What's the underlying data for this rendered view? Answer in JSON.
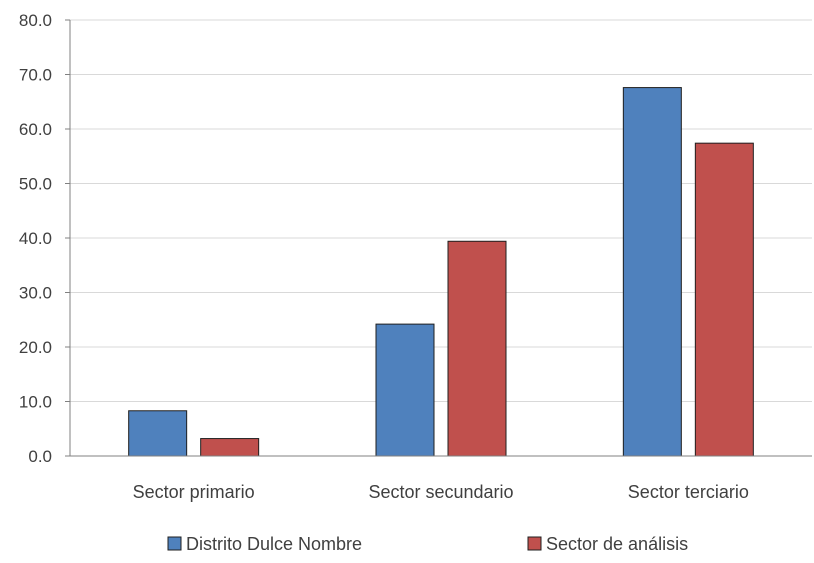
{
  "chart_data": {
    "type": "bar",
    "categories": [
      "Sector primario",
      "Sector secundario",
      "Sector terciario"
    ],
    "series": [
      {
        "name": "Distrito Dulce Nombre",
        "values": [
          8.3,
          24.2,
          67.6
        ],
        "color": "#4f81bd"
      },
      {
        "name": "Sector de análisis",
        "values": [
          3.2,
          39.4,
          57.4
        ],
        "color": "#c0504d"
      }
    ],
    "yticks": [
      "0.0",
      "10.0",
      "20.0",
      "30.0",
      "40.0",
      "50.0",
      "60.0",
      "70.0",
      "80.0"
    ],
    "ylim": [
      0,
      80
    ],
    "grid": true,
    "legend_position": "bottom",
    "title": "",
    "xlabel": "",
    "ylabel": ""
  }
}
